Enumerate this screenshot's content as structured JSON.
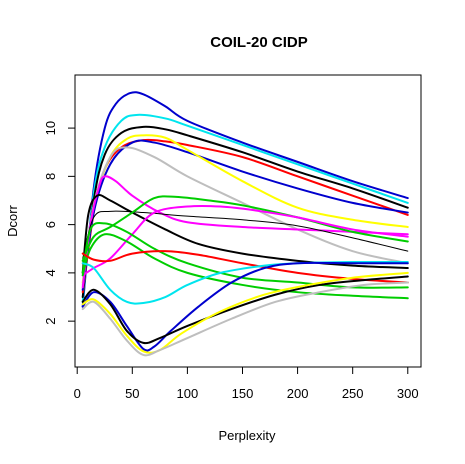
{
  "chart_data": {
    "type": "line",
    "title": "COIL-20 CIDP",
    "xlabel": "Perplexity",
    "ylabel": "Dcorr",
    "xlim": [
      -2,
      312
    ],
    "ylim": [
      0.1,
      12.2
    ],
    "xticks": [
      0,
      50,
      100,
      150,
      200,
      250,
      300
    ],
    "yticks": [
      2,
      4,
      6,
      8,
      10
    ],
    "grid": false,
    "legend": "none",
    "series": [
      {
        "color": "#0000CD",
        "points": [
          [
            5,
            2.6
          ],
          [
            15,
            7.5
          ],
          [
            25,
            10.0
          ],
          [
            35,
            11.0
          ],
          [
            48,
            11.45
          ],
          [
            60,
            11.4
          ],
          [
            80,
            10.9
          ],
          [
            100,
            10.3
          ],
          [
            150,
            9.4
          ],
          [
            200,
            8.6
          ],
          [
            250,
            7.8
          ],
          [
            300,
            7.1
          ]
        ]
      },
      {
        "color": "#00E5EE",
        "points": [
          [
            5,
            2.8
          ],
          [
            15,
            7.3
          ],
          [
            25,
            9.2
          ],
          [
            40,
            10.3
          ],
          [
            55,
            10.55
          ],
          [
            80,
            10.4
          ],
          [
            100,
            10.1
          ],
          [
            150,
            9.3
          ],
          [
            200,
            8.5
          ],
          [
            250,
            7.7
          ],
          [
            300,
            6.9
          ]
        ]
      },
      {
        "color": "#000000",
        "points": [
          [
            5,
            3.0
          ],
          [
            15,
            7.0
          ],
          [
            25,
            8.9
          ],
          [
            40,
            9.8
          ],
          [
            60,
            10.05
          ],
          [
            80,
            9.95
          ],
          [
            100,
            9.7
          ],
          [
            150,
            9.0
          ],
          [
            200,
            8.2
          ],
          [
            250,
            7.5
          ],
          [
            300,
            6.7
          ]
        ]
      },
      {
        "color": "#FF0000",
        "points": [
          [
            5,
            3.2
          ],
          [
            15,
            6.5
          ],
          [
            25,
            8.3
          ],
          [
            40,
            9.2
          ],
          [
            60,
            9.5
          ],
          [
            80,
            9.45
          ],
          [
            100,
            9.3
          ],
          [
            150,
            8.8
          ],
          [
            200,
            8.0
          ],
          [
            250,
            7.2
          ],
          [
            300,
            6.4
          ]
        ]
      },
      {
        "color": "#0000CD",
        "points": [
          [
            5,
            3.3
          ],
          [
            15,
            6.5
          ],
          [
            30,
            8.5
          ],
          [
            50,
            9.4
          ],
          [
            70,
            9.4
          ],
          [
            100,
            9.0
          ],
          [
            150,
            8.2
          ],
          [
            200,
            7.5
          ],
          [
            250,
            6.9
          ],
          [
            300,
            6.5
          ]
        ]
      },
      {
        "color": "#FFFF00",
        "points": [
          [
            5,
            3.6
          ],
          [
            15,
            6.8
          ],
          [
            30,
            8.8
          ],
          [
            45,
            9.55
          ],
          [
            60,
            9.7
          ],
          [
            80,
            9.6
          ],
          [
            100,
            9.1
          ],
          [
            150,
            7.8
          ],
          [
            200,
            6.7
          ],
          [
            250,
            6.2
          ],
          [
            300,
            5.9
          ]
        ]
      },
      {
        "color": "#BEBEBE",
        "points": [
          [
            5,
            3.5
          ],
          [
            15,
            6.8
          ],
          [
            30,
            8.8
          ],
          [
            45,
            9.2
          ],
          [
            70,
            8.8
          ],
          [
            100,
            8.0
          ],
          [
            150,
            6.9
          ],
          [
            200,
            5.8
          ],
          [
            250,
            4.9
          ],
          [
            300,
            4.4
          ]
        ]
      },
      {
        "color": "#FF00FF",
        "points": [
          [
            5,
            3.4
          ],
          [
            12,
            6.0
          ],
          [
            20,
            7.6
          ],
          [
            25,
            8.0
          ],
          [
            35,
            7.8
          ],
          [
            50,
            7.2
          ],
          [
            75,
            6.5
          ],
          [
            100,
            6.1
          ],
          [
            150,
            5.9
          ],
          [
            200,
            5.8
          ],
          [
            250,
            5.7
          ],
          [
            300,
            5.6
          ]
        ]
      },
      {
        "color": "#000000",
        "points": [
          [
            5,
            4.0
          ],
          [
            10,
            6.4
          ],
          [
            18,
            7.2
          ],
          [
            30,
            7.0
          ],
          [
            50,
            6.5
          ],
          [
            80,
            5.8
          ],
          [
            110,
            5.2
          ],
          [
            150,
            4.8
          ],
          [
            200,
            4.5
          ],
          [
            250,
            4.3
          ],
          [
            300,
            4.2
          ]
        ]
      },
      {
        "color": "#000000",
        "width": 1,
        "points": [
          [
            5,
            4.6
          ],
          [
            15,
            6.3
          ],
          [
            30,
            6.55
          ],
          [
            60,
            6.5
          ],
          [
            100,
            6.35
          ],
          [
            150,
            6.2
          ],
          [
            200,
            5.95
          ],
          [
            250,
            5.45
          ],
          [
            300,
            4.9
          ]
        ]
      },
      {
        "color": "#00CD00",
        "points": [
          [
            5,
            4.5
          ],
          [
            15,
            5.5
          ],
          [
            30,
            5.9
          ],
          [
            50,
            6.5
          ],
          [
            70,
            7.1
          ],
          [
            90,
            7.15
          ],
          [
            120,
            7.0
          ],
          [
            150,
            6.8
          ],
          [
            200,
            6.3
          ],
          [
            250,
            5.7
          ],
          [
            300,
            5.3
          ]
        ]
      },
      {
        "color": "#FF00FF",
        "points": [
          [
            5,
            3.9
          ],
          [
            15,
            4.2
          ],
          [
            30,
            4.6
          ],
          [
            50,
            5.6
          ],
          [
            70,
            6.5
          ],
          [
            100,
            6.75
          ],
          [
            130,
            6.75
          ],
          [
            160,
            6.6
          ],
          [
            200,
            6.3
          ],
          [
            250,
            5.8
          ],
          [
            300,
            5.5
          ]
        ]
      },
      {
        "color": "#00CD00",
        "points": [
          [
            5,
            4.0
          ],
          [
            12,
            5.8
          ],
          [
            25,
            6.05
          ],
          [
            45,
            5.7
          ],
          [
            70,
            5.0
          ],
          [
            100,
            4.4
          ],
          [
            150,
            3.8
          ],
          [
            200,
            3.6
          ],
          [
            250,
            3.4
          ],
          [
            300,
            3.4
          ]
        ]
      },
      {
        "color": "#00CD00",
        "points": [
          [
            5,
            3.9
          ],
          [
            12,
            5.0
          ],
          [
            25,
            5.6
          ],
          [
            45,
            5.3
          ],
          [
            70,
            4.6
          ],
          [
            100,
            4.0
          ],
          [
            150,
            3.5
          ],
          [
            200,
            3.2
          ],
          [
            250,
            3.05
          ],
          [
            300,
            2.95
          ]
        ]
      },
      {
        "color": "#FF0000",
        "points": [
          [
            5,
            4.8
          ],
          [
            15,
            4.55
          ],
          [
            30,
            4.5
          ],
          [
            50,
            4.8
          ],
          [
            80,
            4.9
          ],
          [
            110,
            4.75
          ],
          [
            150,
            4.4
          ],
          [
            200,
            4.0
          ],
          [
            250,
            3.75
          ],
          [
            300,
            3.6
          ]
        ]
      },
      {
        "color": "#00E5EE",
        "points": [
          [
            5,
            4.4
          ],
          [
            15,
            4.2
          ],
          [
            30,
            3.3
          ],
          [
            45,
            2.8
          ],
          [
            60,
            2.75
          ],
          [
            80,
            3.0
          ],
          [
            100,
            3.5
          ],
          [
            130,
            4.0
          ],
          [
            170,
            4.3
          ],
          [
            200,
            4.4
          ],
          [
            250,
            4.45
          ],
          [
            300,
            4.45
          ]
        ]
      },
      {
        "color": "#0000CD",
        "points": [
          [
            5,
            2.6
          ],
          [
            15,
            3.2
          ],
          [
            30,
            2.8
          ],
          [
            45,
            1.8
          ],
          [
            60,
            0.85
          ],
          [
            70,
            0.95
          ],
          [
            85,
            1.6
          ],
          [
            110,
            2.6
          ],
          [
            140,
            3.6
          ],
          [
            170,
            4.2
          ],
          [
            200,
            4.4
          ],
          [
            250,
            4.4
          ],
          [
            300,
            4.4
          ]
        ]
      },
      {
        "color": "#000000",
        "points": [
          [
            5,
            2.8
          ],
          [
            15,
            3.3
          ],
          [
            30,
            2.7
          ],
          [
            45,
            1.6
          ],
          [
            60,
            1.1
          ],
          [
            75,
            1.3
          ],
          [
            100,
            1.8
          ],
          [
            140,
            2.5
          ],
          [
            180,
            3.1
          ],
          [
            220,
            3.5
          ],
          [
            260,
            3.7
          ],
          [
            300,
            3.85
          ]
        ]
      },
      {
        "color": "#FFFF00",
        "points": [
          [
            5,
            2.7
          ],
          [
            15,
            2.9
          ],
          [
            30,
            2.3
          ],
          [
            45,
            1.4
          ],
          [
            60,
            0.75
          ],
          [
            75,
            0.8
          ],
          [
            95,
            1.5
          ],
          [
            130,
            2.4
          ],
          [
            170,
            3.1
          ],
          [
            210,
            3.5
          ],
          [
            250,
            3.8
          ],
          [
            300,
            4.0
          ]
        ]
      },
      {
        "color": "#BEBEBE",
        "points": [
          [
            5,
            2.5
          ],
          [
            15,
            2.8
          ],
          [
            30,
            2.1
          ],
          [
            45,
            1.2
          ],
          [
            60,
            0.6
          ],
          [
            75,
            0.8
          ],
          [
            100,
            1.3
          ],
          [
            140,
            2.1
          ],
          [
            180,
            2.8
          ],
          [
            220,
            3.2
          ],
          [
            260,
            3.5
          ],
          [
            300,
            3.6
          ]
        ]
      }
    ]
  }
}
